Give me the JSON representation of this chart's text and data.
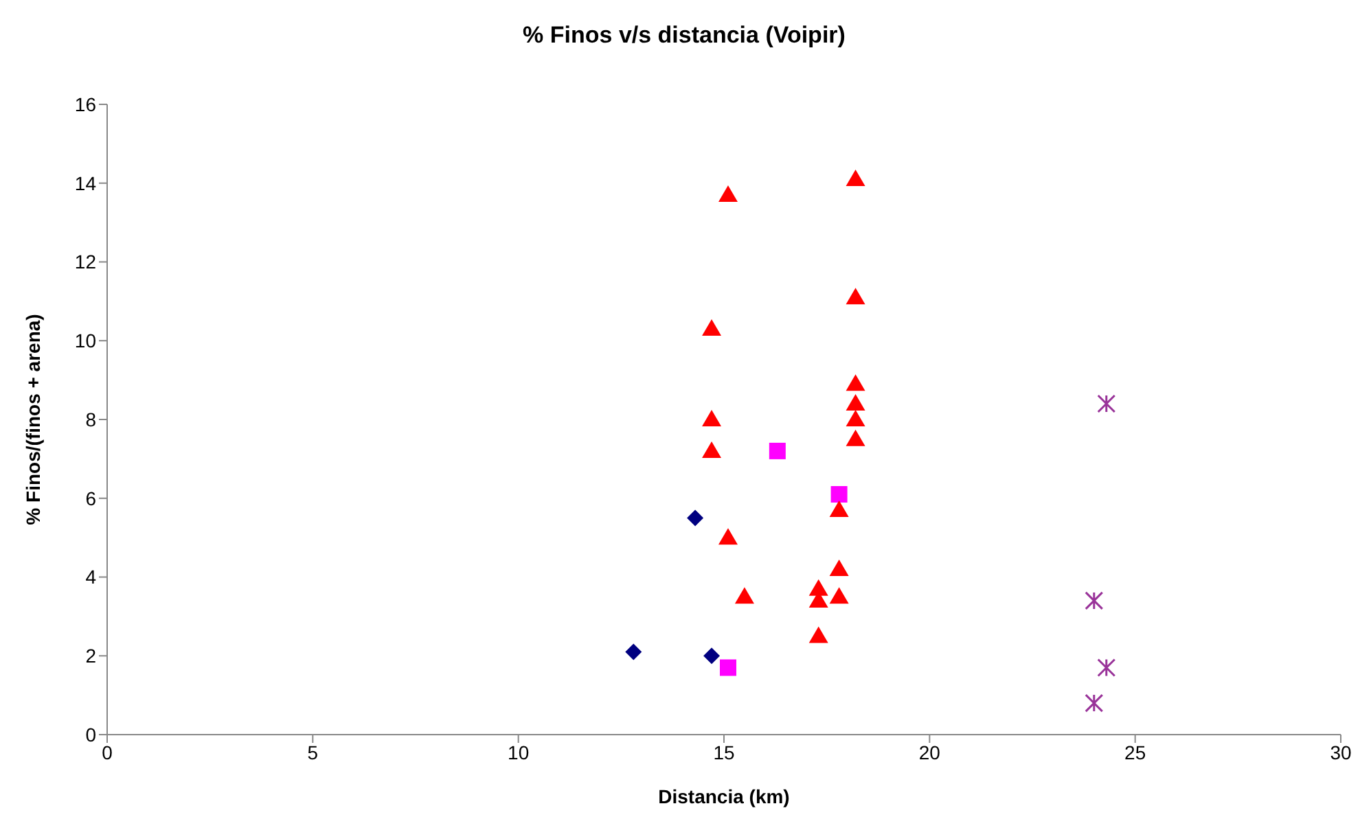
{
  "chart_data": {
    "type": "scatter",
    "title": "% Finos v/s distancia (Voipir)",
    "xlabel": "Distancia (km)",
    "ylabel": "% Finos/(finos + arena)",
    "xlim": [
      0,
      30
    ],
    "xticks": [
      0,
      5,
      10,
      15,
      20,
      25,
      30
    ],
    "ylim": [
      0,
      16
    ],
    "yticks": [
      0,
      2,
      4,
      6,
      8,
      10,
      12,
      14,
      16
    ],
    "grid": false,
    "legend": false,
    "series": [
      {
        "color": "#000080",
        "marker": "diamond",
        "x": [
          12.8,
          14.3,
          14.7
        ],
        "values": [
          2.1,
          5.5,
          2.0
        ]
      },
      {
        "color": "#ff00ff",
        "marker": "square",
        "x": [
          16.3,
          17.8,
          15.1
        ],
        "values": [
          7.2,
          6.1,
          1.7
        ]
      },
      {
        "color": "#ff0000",
        "marker": "triangle",
        "x": [
          15.1,
          18.2,
          18.2,
          14.7,
          18.2,
          18.2,
          18.2,
          18.2,
          14.7,
          14.7,
          17.8,
          15.1,
          17.8,
          15.5,
          17.3,
          17.3,
          17.8,
          17.3
        ],
        "values": [
          13.7,
          14.1,
          11.1,
          10.3,
          8.9,
          8.4,
          8.0,
          7.5,
          8.0,
          7.2,
          5.7,
          5.0,
          4.2,
          3.5,
          3.7,
          3.4,
          3.5,
          2.5
        ]
      },
      {
        "color": "#993399",
        "marker": "cross",
        "x": [
          24.3,
          24.0,
          24.3,
          24.0
        ],
        "values": [
          8.4,
          3.4,
          1.7,
          0.8
        ]
      }
    ]
  }
}
